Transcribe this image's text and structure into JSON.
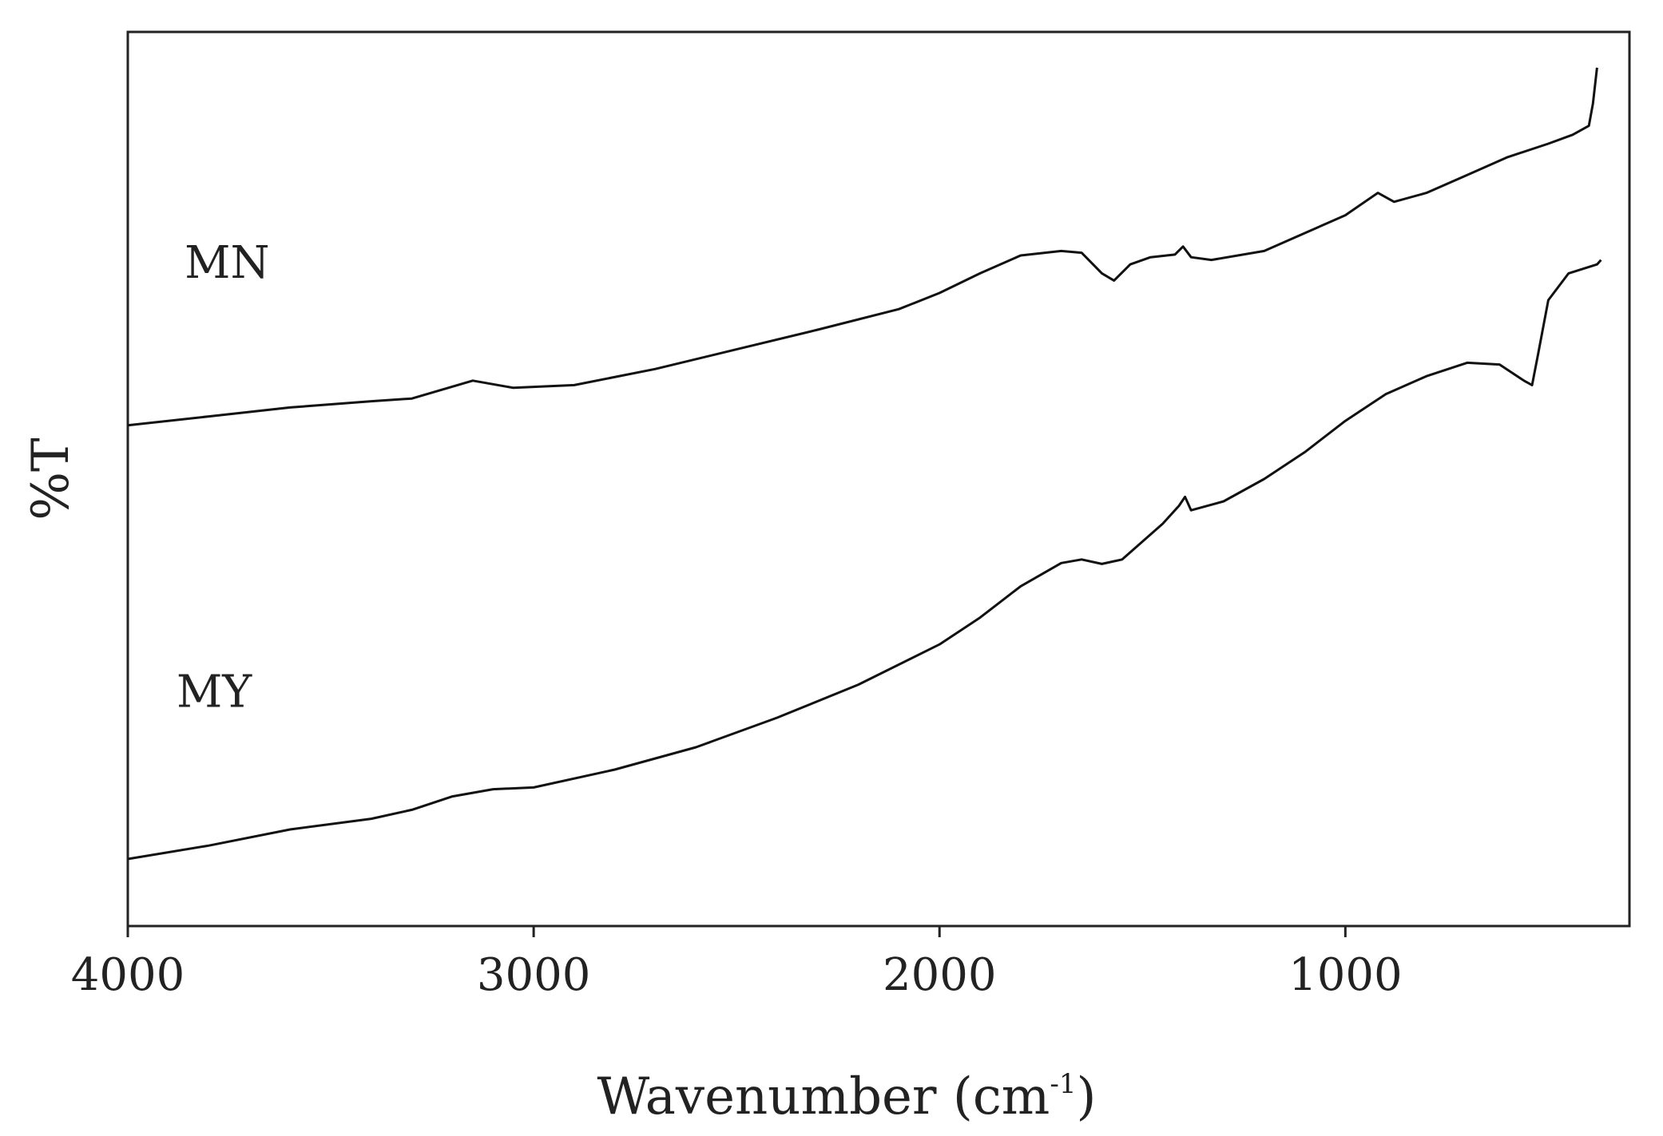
{
  "chart_data": {
    "type": "line",
    "title": "",
    "xlabel": {
      "text": "Wavenumber (cm",
      "superscript": "-1",
      "suffix": ")"
    },
    "ylabel": "%T",
    "xlim": [
      4000,
      300
    ],
    "ylim": [
      0,
      100
    ],
    "xticks": [
      4000,
      3000,
      2000,
      1000
    ],
    "xtick_labels": [
      "4000",
      "3000",
      "2000",
      "1000"
    ],
    "y_ticks_shown": false,
    "grid": false,
    "legend": "none",
    "series": [
      {
        "name": "MN",
        "color": "#111111",
        "points": [
          [
            4000,
            56.0
          ],
          [
            3800,
            57.0
          ],
          [
            3600,
            58.0
          ],
          [
            3400,
            58.7
          ],
          [
            3300,
            59.0
          ],
          [
            3150,
            61.0
          ],
          [
            3050,
            60.2
          ],
          [
            2900,
            60.5
          ],
          [
            2700,
            62.3
          ],
          [
            2500,
            64.5
          ],
          [
            2300,
            66.7
          ],
          [
            2100,
            69.0
          ],
          [
            2000,
            70.8
          ],
          [
            1900,
            73.0
          ],
          [
            1800,
            75.0
          ],
          [
            1700,
            75.5
          ],
          [
            1650,
            75.3
          ],
          [
            1600,
            73.0
          ],
          [
            1570,
            72.2
          ],
          [
            1530,
            74.0
          ],
          [
            1480,
            74.8
          ],
          [
            1420,
            75.1
          ],
          [
            1400,
            76.0
          ],
          [
            1380,
            74.8
          ],
          [
            1330,
            74.5
          ],
          [
            1200,
            75.5
          ],
          [
            1100,
            77.5
          ],
          [
            1000,
            79.5
          ],
          [
            920,
            82.0
          ],
          [
            880,
            81.0
          ],
          [
            800,
            82.0
          ],
          [
            700,
            84.0
          ],
          [
            600,
            86.0
          ],
          [
            500,
            87.5
          ],
          [
            440,
            88.5
          ],
          [
            400,
            89.5
          ],
          [
            390,
            92.0
          ],
          [
            380,
            96.0
          ]
        ]
      },
      {
        "name": "MY",
        "color": "#111111",
        "points": [
          [
            4000,
            7.5
          ],
          [
            3800,
            9.0
          ],
          [
            3600,
            10.8
          ],
          [
            3400,
            12.0
          ],
          [
            3300,
            13.0
          ],
          [
            3200,
            14.5
          ],
          [
            3100,
            15.3
          ],
          [
            3000,
            15.5
          ],
          [
            2800,
            17.5
          ],
          [
            2600,
            20.0
          ],
          [
            2400,
            23.3
          ],
          [
            2200,
            27.0
          ],
          [
            2000,
            31.5
          ],
          [
            1900,
            34.5
          ],
          [
            1800,
            38.0
          ],
          [
            1700,
            40.6
          ],
          [
            1650,
            41.0
          ],
          [
            1600,
            40.5
          ],
          [
            1550,
            41.0
          ],
          [
            1500,
            43.0
          ],
          [
            1450,
            45.0
          ],
          [
            1410,
            47.0
          ],
          [
            1395,
            48.0
          ],
          [
            1380,
            46.5
          ],
          [
            1300,
            47.5
          ],
          [
            1200,
            50.0
          ],
          [
            1100,
            53.0
          ],
          [
            1000,
            56.5
          ],
          [
            900,
            59.5
          ],
          [
            800,
            61.5
          ],
          [
            700,
            63.0
          ],
          [
            620,
            62.8
          ],
          [
            560,
            61.0
          ],
          [
            540,
            60.5
          ],
          [
            525,
            64.0
          ],
          [
            500,
            70.0
          ],
          [
            450,
            73.0
          ],
          [
            380,
            74.0
          ],
          [
            370,
            74.5
          ]
        ]
      }
    ],
    "annotations": [
      {
        "text": "MN",
        "x": 3860,
        "y": 72.5
      },
      {
        "text": "MY",
        "x": 3880,
        "y": 24.5
      }
    ]
  }
}
